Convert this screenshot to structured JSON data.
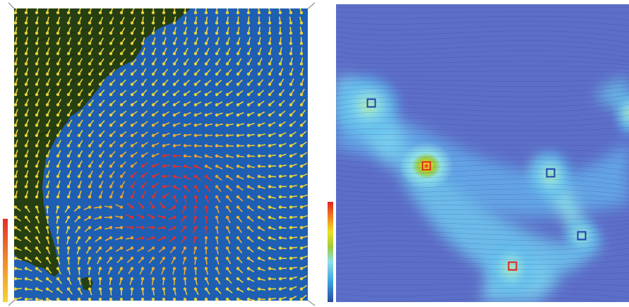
{
  "figure": {
    "left_panel": {
      "kind": "wind-vector-map",
      "colormap_legend": {
        "colors": [
          "#f4d434",
          "#f08a2a",
          "#e0302a"
        ],
        "label": ""
      },
      "land_color": "#263f12",
      "ocean_color": "#1e5fb4",
      "arrow_low_color": "#e9d23a",
      "arrow_high_color": "#e0302a"
    },
    "right_panel": {
      "kind": "vector-field-magnitude-with-critical-points",
      "colormap_legend": {
        "colors": [
          "#2a4aa0",
          "#3aa0e0",
          "#8ee0e8",
          "#9ccc3a",
          "#f0e020",
          "#f08020",
          "#e02020"
        ],
        "label": ""
      },
      "critical_points": [
        {
          "color": "blue",
          "stroke": "#1e3fb4"
        },
        {
          "color": "red",
          "stroke": "#e02020"
        },
        {
          "color": "blue",
          "stroke": "#1e3fb4"
        },
        {
          "color": "red",
          "stroke": "#e02020"
        },
        {
          "color": "blue",
          "stroke": "#1e3fb4"
        }
      ]
    }
  }
}
